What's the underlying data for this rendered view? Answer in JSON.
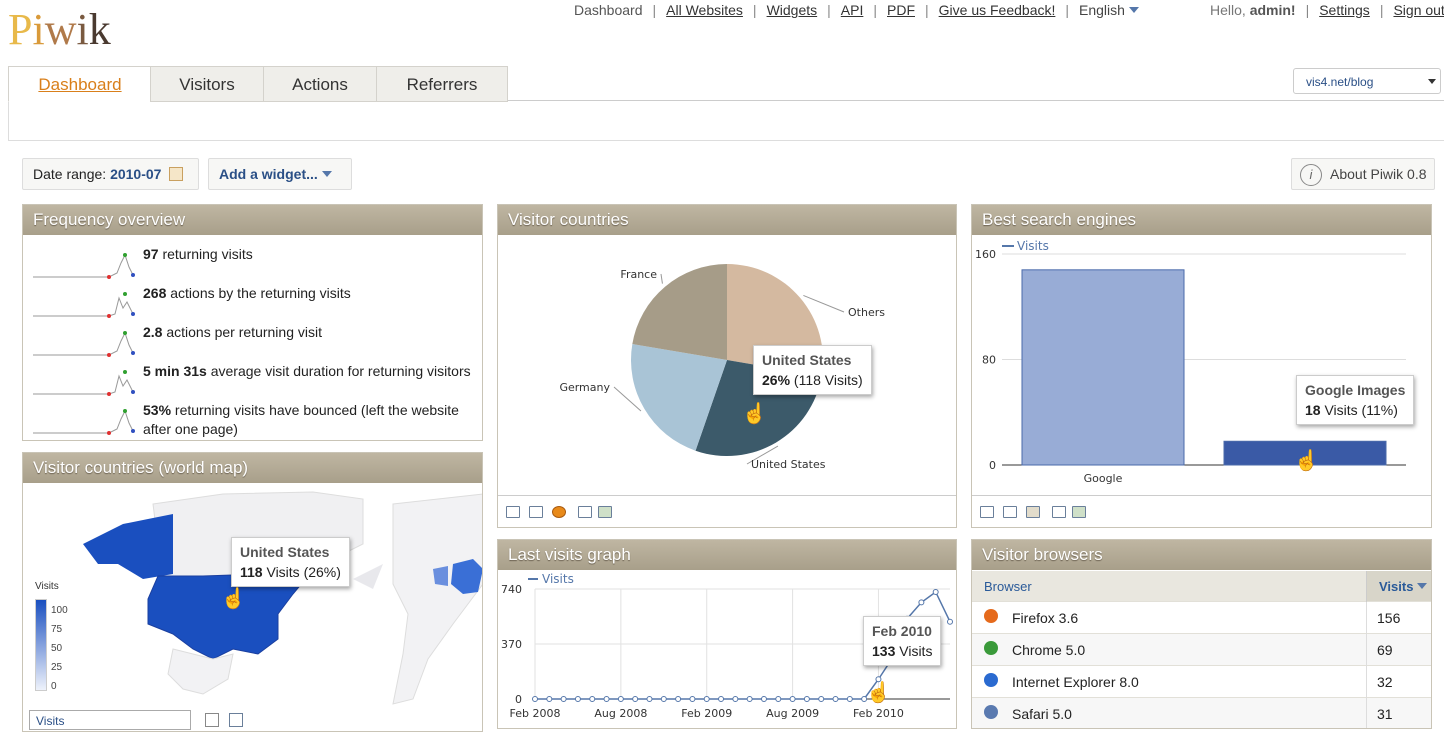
{
  "app": {
    "logo": "Piwik"
  },
  "topnav": {
    "dashboard": "Dashboard",
    "all_websites": "All Websites",
    "widgets": "Widgets",
    "api": "API",
    "pdf": "PDF",
    "feedback": "Give us Feedback!",
    "language": "English"
  },
  "user": {
    "hello": "Hello,",
    "name": "admin!",
    "settings": "Settings",
    "signout": "Sign out"
  },
  "tabs": [
    {
      "label": "Dashboard",
      "active": true
    },
    {
      "label": "Visitors"
    },
    {
      "label": "Actions"
    },
    {
      "label": "Referrers"
    }
  ],
  "site_selector": {
    "value": "vis4.net/blog"
  },
  "controls": {
    "date_label": "Date range:",
    "date_value": "2010-07",
    "add_widget": "Add a widget...",
    "about": "About Piwik 0.8"
  },
  "frequency": {
    "title": "Frequency overview",
    "rows": [
      {
        "value": "97",
        "text": " returning visits"
      },
      {
        "value": "268",
        "text": " actions by the returning visits"
      },
      {
        "value": "2.8",
        "text": " actions per returning visit"
      },
      {
        "value": "5 min 31s",
        "text": " average visit duration for returning visitors"
      },
      {
        "value": "53%",
        "text": " returning visits have bounced (left the website after one page)"
      }
    ]
  },
  "world_map": {
    "title": "Visitor countries (world map)",
    "legend_title": "Visits",
    "legend_ticks": [
      "100",
      "75",
      "50",
      "25",
      "0"
    ],
    "tooltip_title": "United States",
    "tooltip_value": "118",
    "tooltip_rest": " Visits (26%)",
    "metric_select": "Visits"
  },
  "countries": {
    "title": "Visitor countries",
    "tooltip_title": "United States",
    "tooltip_pct": "26%",
    "tooltip_rest": " (118 Visits)"
  },
  "search_engines": {
    "title": "Best search engines",
    "tooltip_title": "Google Images",
    "tooltip_value": "18",
    "tooltip_rest": " Visits (11%)"
  },
  "visits_graph": {
    "title": "Last visits graph",
    "tooltip_title": "Feb 2010",
    "tooltip_value": "133",
    "tooltip_rest": " Visits"
  },
  "browsers": {
    "title": "Visitor browsers",
    "col_browser": "Browser",
    "col_visits": "Visits",
    "rows": [
      {
        "name": "Firefox 3.6",
        "visits": "156",
        "icon": "firefox-icon",
        "color": "#e56a1c"
      },
      {
        "name": "Chrome 5.0",
        "visits": "69",
        "icon": "chrome-icon",
        "color": "#3a9a3a"
      },
      {
        "name": "Internet Explorer 8.0",
        "visits": "32",
        "icon": "ie-icon",
        "color": "#2a6ad0"
      },
      {
        "name": "Safari 5.0",
        "visits": "31",
        "icon": "safari-icon",
        "color": "#5a7ab0"
      }
    ]
  },
  "chart_data": [
    {
      "type": "pie",
      "title": "Visitor countries",
      "labels": [
        "Others",
        "United States",
        "Germany",
        "France"
      ],
      "values": [
        26,
        26,
        21,
        21
      ],
      "colors": [
        "#d4b9a0",
        "#3c5a6a",
        "#a9c4d6",
        "#a69c88"
      ]
    },
    {
      "type": "bar",
      "title": "Best search engines",
      "legend": "Visits",
      "categories": [
        "Google",
        "Google Images"
      ],
      "values": [
        148,
        18
      ],
      "ylim": [
        0,
        160
      ],
      "yticks": [
        0,
        80,
        160
      ],
      "colors": [
        "#98acd6",
        "#3a5aa6"
      ]
    },
    {
      "type": "line",
      "title": "Last visits graph",
      "legend": "Visits",
      "x": [
        "Feb 2008",
        "Mar 2008",
        "Apr 2008",
        "May 2008",
        "Jun 2008",
        "Jul 2008",
        "Aug 2008",
        "Sep 2008",
        "Oct 2008",
        "Nov 2008",
        "Dec 2008",
        "Jan 2009",
        "Feb 2009",
        "Mar 2009",
        "Apr 2009",
        "May 2009",
        "Jun 2009",
        "Jul 2009",
        "Aug 2009",
        "Sep 2009",
        "Oct 2009",
        "Nov 2009",
        "Dec 2009",
        "Jan 2010",
        "Feb 2010",
        "Mar 2010",
        "Apr 2010",
        "May 2010",
        "Jun 2010",
        "Jul 2010"
      ],
      "y": [
        0,
        0,
        0,
        0,
        0,
        0,
        0,
        0,
        0,
        0,
        0,
        0,
        0,
        0,
        0,
        0,
        0,
        0,
        0,
        0,
        0,
        0,
        0,
        0,
        133,
        0,
        0,
        0,
        0,
        0
      ],
      "tail_y": [
        0,
        0,
        0,
        0,
        0,
        0,
        0,
        0,
        0,
        0,
        0,
        0,
        0,
        0,
        0,
        0,
        0,
        0,
        0,
        0,
        0,
        0,
        0,
        0,
        133,
        280,
        540,
        650,
        720,
        520
      ],
      "xtick_labels": [
        "Feb 2008",
        "Aug 2008",
        "Feb 2009",
        "Aug 2009",
        "Feb 2010"
      ],
      "ylim": [
        0,
        740
      ],
      "yticks": [
        0,
        370,
        740
      ]
    }
  ]
}
